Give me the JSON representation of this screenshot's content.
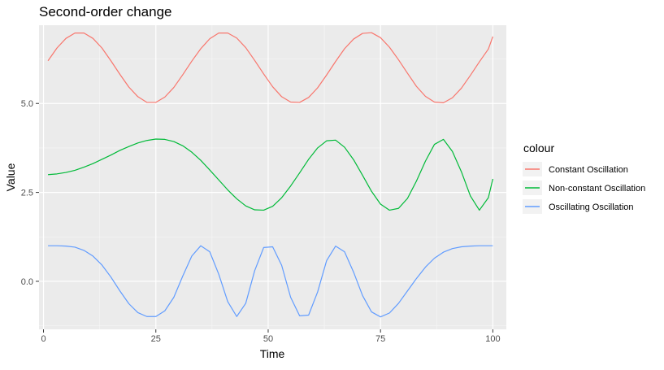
{
  "chart_data": {
    "type": "line",
    "title": "Second-order change",
    "xlabel": "Time",
    "ylabel": "Value",
    "xlim": [
      -1,
      103
    ],
    "ylim": [
      -1.35,
      7.2
    ],
    "x_ticks": [
      0,
      25,
      50,
      75,
      100
    ],
    "x_tick_labels": [
      "0",
      "25",
      "50",
      "75",
      "100"
    ],
    "y_ticks": [
      0,
      2.5,
      5
    ],
    "y_tick_labels": [
      "0.0",
      "2.5",
      "5.0"
    ],
    "x_minor": [
      12.5,
      37.5,
      62.5,
      87.5
    ],
    "y_minor": [
      -1.25,
      1.25,
      3.75,
      6.25
    ],
    "grid": true,
    "legend": {
      "title": "colour",
      "position": "right"
    },
    "series": [
      {
        "name": "Constant Oscillation",
        "color": "#F8766D",
        "x": [
          1,
          3,
          5,
          7,
          9,
          11,
          13,
          15,
          17,
          19,
          21,
          23,
          25,
          27,
          29,
          31,
          33,
          35,
          37,
          39,
          41,
          43,
          45,
          47,
          49,
          51,
          53,
          55,
          57,
          59,
          61,
          63,
          65,
          67,
          69,
          71,
          73,
          75,
          77,
          79,
          81,
          83,
          85,
          87,
          89,
          91,
          93,
          95,
          97,
          99,
          100
        ],
        "values": [
          6.2,
          6.56,
          6.83,
          6.98,
          6.98,
          6.83,
          6.56,
          6.2,
          5.82,
          5.46,
          5.19,
          5.03,
          5.03,
          5.18,
          5.45,
          5.81,
          6.19,
          6.54,
          6.82,
          6.98,
          6.98,
          6.84,
          6.57,
          6.21,
          5.83,
          5.47,
          5.19,
          5.04,
          5.03,
          5.17,
          5.44,
          5.8,
          6.18,
          6.54,
          6.81,
          6.97,
          6.99,
          6.85,
          6.58,
          6.23,
          5.85,
          5.48,
          5.2,
          5.04,
          5.02,
          5.16,
          5.43,
          5.79,
          6.17,
          6.53,
          6.88
        ]
      },
      {
        "name": "Non-constant Oscillation",
        "color": "#00BA38",
        "x": [
          1,
          3,
          5,
          7,
          9,
          11,
          13,
          15,
          17,
          19,
          21,
          23,
          25,
          27,
          29,
          31,
          33,
          35,
          37,
          39,
          41,
          43,
          45,
          47,
          49,
          51,
          53,
          55,
          57,
          59,
          61,
          63,
          65,
          67,
          69,
          71,
          73,
          75,
          77,
          79,
          81,
          83,
          85,
          87,
          89,
          91,
          93,
          95,
          97,
          99,
          100
        ],
        "values": [
          3,
          3.02,
          3.06,
          3.12,
          3.21,
          3.31,
          3.43,
          3.55,
          3.68,
          3.79,
          3.89,
          3.96,
          4,
          3.99,
          3.93,
          3.81,
          3.63,
          3.4,
          3.13,
          2.85,
          2.57,
          2.32,
          2.12,
          2.01,
          2,
          2.11,
          2.35,
          2.68,
          3.05,
          3.43,
          3.75,
          3.95,
          3.97,
          3.77,
          3.42,
          2.98,
          2.53,
          2.17,
          2,
          2.05,
          2.33,
          2.82,
          3.38,
          3.85,
          3.99,
          3.65,
          3.08,
          2.4,
          2,
          2.35,
          2.88
        ]
      },
      {
        "name": "Oscillating Oscillation",
        "color": "#619CFF",
        "x": [
          1,
          3,
          5,
          7,
          9,
          11,
          13,
          15,
          17,
          19,
          21,
          23,
          25,
          27,
          29,
          31,
          33,
          35,
          37,
          39,
          41,
          43,
          45,
          47,
          49,
          51,
          53,
          55,
          57,
          59,
          61,
          63,
          65,
          67,
          69,
          71,
          73,
          75,
          77,
          79,
          81,
          83,
          85,
          87,
          89,
          91,
          93,
          95,
          97,
          99,
          100
        ],
        "values": [
          1,
          1,
          0.99,
          0.96,
          0.87,
          0.71,
          0.46,
          0.12,
          -0.27,
          -0.63,
          -0.88,
          -0.99,
          -0.99,
          -0.83,
          -0.45,
          0.15,
          0.71,
          1,
          0.83,
          0.2,
          -0.57,
          -0.99,
          -0.62,
          0.3,
          0.95,
          0.97,
          0.45,
          -0.45,
          -0.97,
          -0.95,
          -0.3,
          0.58,
          0.99,
          0.83,
          0.26,
          -0.4,
          -0.86,
          -1,
          -0.89,
          -0.62,
          -0.27,
          0.08,
          0.4,
          0.65,
          0.82,
          0.92,
          0.97,
          0.99,
          1,
          1,
          1
        ]
      }
    ]
  }
}
